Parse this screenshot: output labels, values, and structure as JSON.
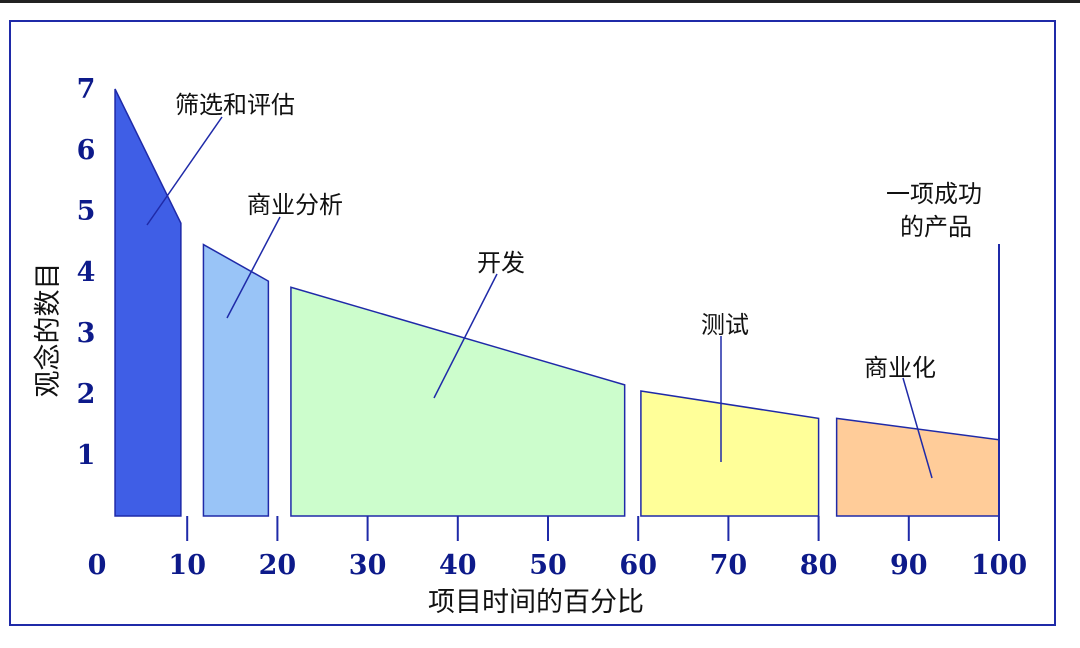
{
  "chart_data": {
    "type": "area",
    "ylabel": "观念的数目",
    "xlabel": "项目时间的百分比",
    "xlim": [
      0,
      100
    ],
    "ylim": [
      0,
      7
    ],
    "x_ticks": [
      "0",
      "10",
      "20",
      "30",
      "40",
      "50",
      "60",
      "70",
      "80",
      "90",
      "100"
    ],
    "y_ticks": [
      "1",
      "2",
      "3",
      "4",
      "5",
      "6",
      "7"
    ],
    "stages": [
      {
        "name": "筛选和评估",
        "x_start": 2,
        "x_end": 9.3,
        "y_start": 7.0,
        "y_end": 4.8,
        "color": "#3f5ee6"
      },
      {
        "name": "商业分析",
        "x_start": 11.8,
        "x_end": 19,
        "y_start": 4.45,
        "y_end": 3.85,
        "color": "#99c4f7"
      },
      {
        "name": "开发",
        "x_start": 21.5,
        "x_end": 58.5,
        "y_start": 3.75,
        "y_end": 2.15,
        "color": "#ccfdcc"
      },
      {
        "name": "测试",
        "x_start": 60.3,
        "x_end": 80,
        "y_start": 2.05,
        "y_end": 1.6,
        "color": "#ffff99"
      },
      {
        "name": "商业化",
        "x_start": 82,
        "x_end": 102.5,
        "y_start": 1.6,
        "y_end": 1.25,
        "color": "#ffcc99"
      }
    ],
    "final_label_line1": "一项成功",
    "final_label_line2": "的产品"
  }
}
